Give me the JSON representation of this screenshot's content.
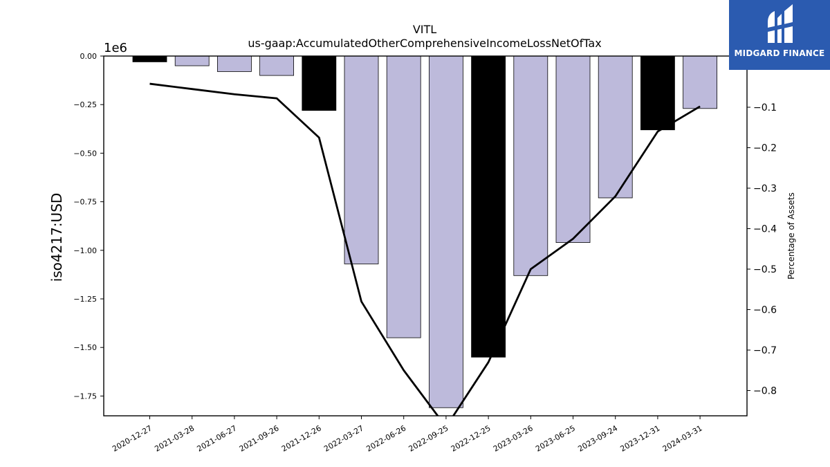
{
  "brand": {
    "name": "MIDGARD FINANCE",
    "color": "#2b5bb0",
    "logo_icon": "midgard-logo-icon"
  },
  "chart_data": {
    "type": "bar",
    "title": "VITL",
    "subtitle": "us-gaap:AccumulatedOtherComprehensiveIncomeLossNetOfTax",
    "ylabel": "iso4217:USD",
    "y2label": "Percentage of Assets",
    "offset_text": "1e6",
    "categories": [
      "2020-12-27",
      "2021-03-28",
      "2021-06-27",
      "2021-09-26",
      "2021-12-26",
      "2022-03-27",
      "2022-06-26",
      "2022-09-25",
      "2022-12-25",
      "2023-03-26",
      "2023-06-25",
      "2023-09-24",
      "2023-12-31",
      "2024-03-31"
    ],
    "series": [
      {
        "type": "bar",
        "axis": "left",
        "values": [
          -0.03,
          -0.05,
          -0.08,
          -0.1,
          -0.28,
          -1.07,
          -1.45,
          -1.81,
          -1.55,
          -1.13,
          -0.96,
          -0.73,
          -0.38,
          -0.27
        ],
        "colors": [
          "#000000",
          "#bdbadb",
          "#bdbadb",
          "#bdbadb",
          "#000000",
          "#bdbadb",
          "#bdbadb",
          "#bdbadb",
          "#000000",
          "#bdbadb",
          "#bdbadb",
          "#bdbadb",
          "#000000",
          "#bdbadb"
        ]
      },
      {
        "type": "line",
        "axis": "right",
        "values": [
          -0.042,
          -0.055,
          -0.068,
          -0.078,
          -0.175,
          -0.58,
          -0.75,
          -0.89,
          -0.73,
          -0.5,
          -0.425,
          -0.32,
          -0.16,
          -0.098
        ],
        "color": "#000000"
      }
    ],
    "yticks": [
      "0.00",
      "−0.25",
      "−0.50",
      "−0.75",
      "−1.00",
      "−1.25",
      "−1.50",
      "−1.75"
    ],
    "ytick_values": [
      0,
      -0.25,
      -0.5,
      -0.75,
      -1.0,
      -1.25,
      -1.5,
      -1.75
    ],
    "y2ticks": [
      "−0.1",
      "−0.2",
      "−0.3",
      "−0.4",
      "−0.5",
      "−0.6",
      "−0.7",
      "−0.8"
    ],
    "y2tick_values": [
      -0.1,
      -0.2,
      -0.3,
      -0.4,
      -0.5,
      -0.6,
      -0.7,
      -0.8
    ],
    "ylim": [
      -1.845,
      0
    ],
    "y2lim": [
      -0.88,
      0.0
    ],
    "grid": false
  }
}
